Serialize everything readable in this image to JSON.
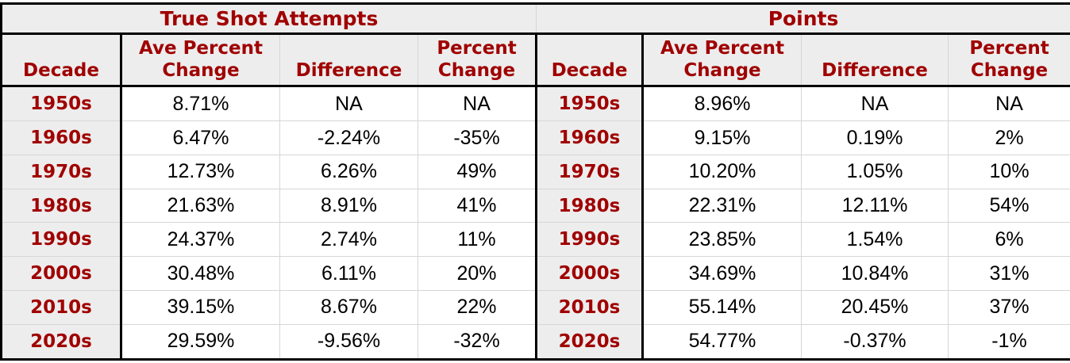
{
  "colors": {
    "accent_red": "#A00000",
    "header_background": "#EDEDED",
    "grid_line": "#D6D6D6",
    "border_black": "#000000"
  },
  "chart_data": [
    {
      "type": "table",
      "title": "True Shot Attempts",
      "columns": [
        "Decade",
        "Ave Percent\nChange",
        "Difference",
        "Percent\nChange"
      ],
      "rows": [
        [
          "1950s",
          "8.71%",
          "NA",
          "NA"
        ],
        [
          "1960s",
          "6.47%",
          "-2.24%",
          "-35%"
        ],
        [
          "1970s",
          "12.73%",
          "6.26%",
          "49%"
        ],
        [
          "1980s",
          "21.63%",
          "8.91%",
          "41%"
        ],
        [
          "1990s",
          "24.37%",
          "2.74%",
          "11%"
        ],
        [
          "2000s",
          "30.48%",
          "6.11%",
          "20%"
        ],
        [
          "2010s",
          "39.15%",
          "8.67%",
          "22%"
        ],
        [
          "2020s",
          "29.59%",
          "-9.56%",
          "-32%"
        ]
      ]
    },
    {
      "type": "table",
      "title": "Points",
      "columns": [
        "Decade",
        "Ave Percent\nChange",
        "Difference",
        "Percent\nChange"
      ],
      "rows": [
        [
          "1950s",
          "8.96%",
          "NA",
          "NA"
        ],
        [
          "1960s",
          "9.15%",
          "0.19%",
          "2%"
        ],
        [
          "1970s",
          "10.20%",
          "1.05%",
          "10%"
        ],
        [
          "1980s",
          "22.31%",
          "12.11%",
          "54%"
        ],
        [
          "1990s",
          "23.85%",
          "1.54%",
          "6%"
        ],
        [
          "2000s",
          "34.69%",
          "10.84%",
          "31%"
        ],
        [
          "2010s",
          "55.14%",
          "20.45%",
          "37%"
        ],
        [
          "2020s",
          "54.77%",
          "-0.37%",
          "-1%"
        ]
      ]
    }
  ]
}
